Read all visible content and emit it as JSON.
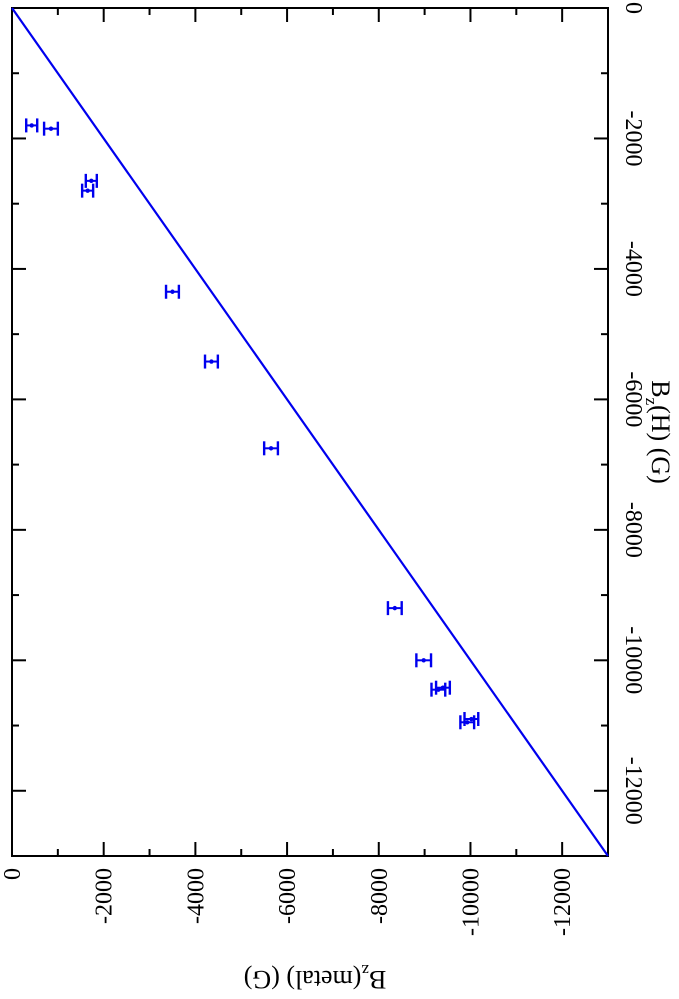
{
  "chart_data": {
    "type": "scatter",
    "orientation_note_rotated": true,
    "x_axis": {
      "label_main": "B",
      "label_sub": "z",
      "label_rest": "(H)  (G)",
      "lim": [
        0,
        -13000
      ],
      "ticks": [
        0,
        -2000,
        -4000,
        -6000,
        -8000,
        -10000,
        -12000
      ],
      "tick_labels": [
        "0",
        "-2000",
        "-4000",
        "-6000",
        "-8000",
        "-10000",
        "-12000"
      ]
    },
    "y_axis": {
      "label_main": "B",
      "label_sub": "z",
      "label_rest": "(metal)  (G)",
      "lim": [
        0,
        -13000
      ],
      "ticks": [
        0,
        -2000,
        -4000,
        -6000,
        -8000,
        -10000,
        -12000
      ],
      "tick_labels": [
        "0",
        "-2000",
        "-4000",
        "-6000",
        "-8000",
        "-10000",
        "-12000"
      ]
    },
    "reference_line": {
      "from": [
        0,
        0
      ],
      "to": [
        -13000,
        -13000
      ],
      "color": "#0000ee"
    },
    "series": [
      {
        "color": "#0000ee",
        "points": [
          {
            "x": -1800,
            "y": -430,
            "err": 120
          },
          {
            "x": -1850,
            "y": -850,
            "err": 150
          },
          {
            "x": -2800,
            "y": -1650,
            "err": 120
          },
          {
            "x": -2650,
            "y": -1730,
            "err": 120
          },
          {
            "x": -4350,
            "y": -3500,
            "err": 140
          },
          {
            "x": -5420,
            "y": -4350,
            "err": 140
          },
          {
            "x": -6750,
            "y": -5650,
            "err": 150
          },
          {
            "x": -9200,
            "y": -8350,
            "err": 150
          },
          {
            "x": -10000,
            "y": -8980,
            "err": 160
          },
          {
            "x": -10450,
            "y": -9300,
            "err": 150
          },
          {
            "x": -10420,
            "y": -9400,
            "err": 150
          },
          {
            "x": -10950,
            "y": -9930,
            "err": 150
          },
          {
            "x": -10900,
            "y": -10020,
            "err": 150
          }
        ]
      }
    ]
  }
}
